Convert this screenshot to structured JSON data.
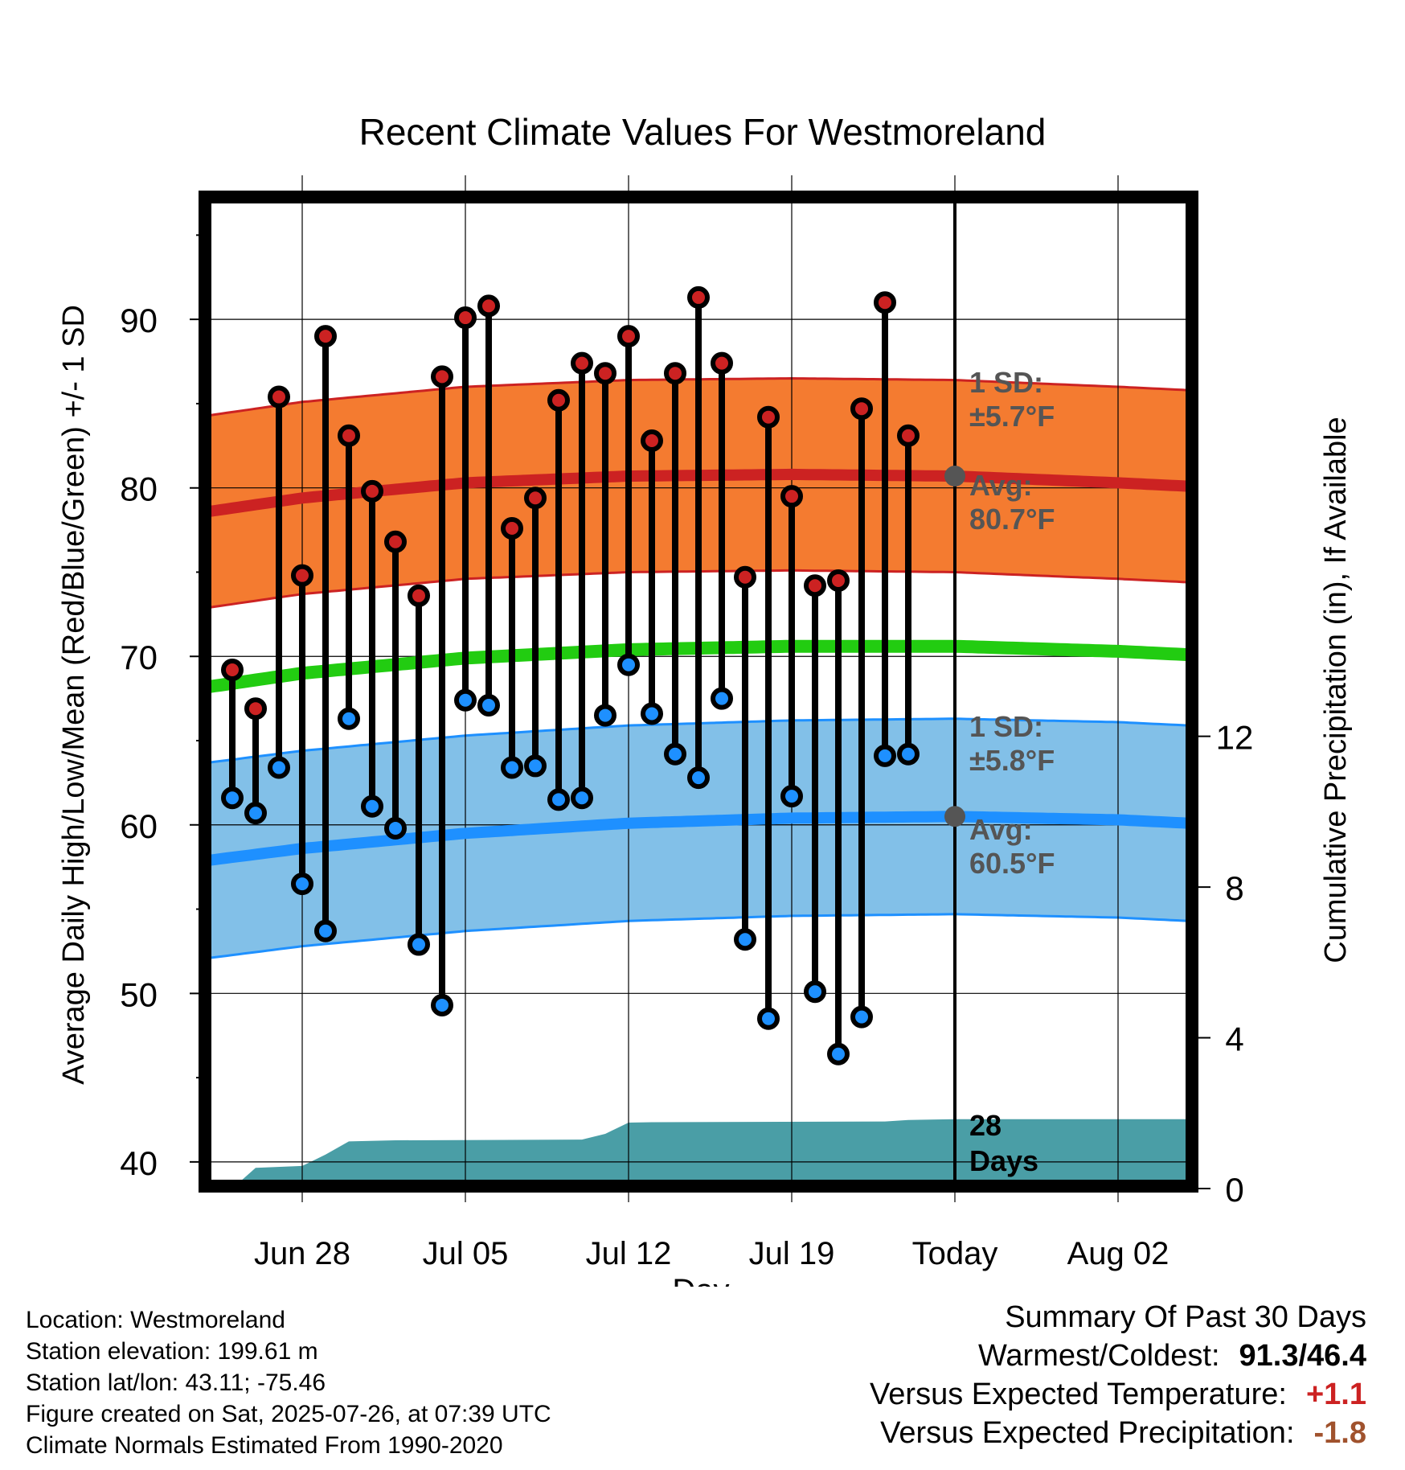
{
  "chart_data": {
    "type": "line",
    "title": "Recent Climate Values For Westmoreland",
    "xlabel": "Day",
    "ylabel": "Average Daily High/Low/Mean (Red/Blue/Green) +/- 1 SD",
    "y2label": "Cumulative Precipitation (in), If Available",
    "ylim": [
      38.8,
      97.5
    ],
    "y2lim": [
      0,
      28
    ],
    "xlim": [
      "2025-06-24",
      "2025-08-05"
    ],
    "grid": true,
    "x_ticks": [
      {
        "date": "2025-06-28",
        "label": "Jun 28"
      },
      {
        "date": "2025-07-05",
        "label": "Jul 05"
      },
      {
        "date": "2025-07-12",
        "label": "Jul 12"
      },
      {
        "date": "2025-07-19",
        "label": "Jul 19"
      },
      {
        "date": "2025-07-26",
        "label": "Today"
      },
      {
        "date": "2025-08-02",
        "label": "Aug 02"
      }
    ],
    "y_ticks": [
      40,
      50,
      60,
      70,
      80,
      90
    ],
    "y2_ticks": [
      0,
      4,
      8,
      12
    ],
    "today": "2025-07-26",
    "daily": [
      {
        "date": "2025-06-25",
        "high": 69.2,
        "low": 61.6
      },
      {
        "date": "2025-06-26",
        "high": 66.9,
        "low": 60.7
      },
      {
        "date": "2025-06-27",
        "high": 85.4,
        "low": 63.4
      },
      {
        "date": "2025-06-28",
        "high": 74.8,
        "low": 56.5
      },
      {
        "date": "2025-06-29",
        "high": 89.0,
        "low": 53.7
      },
      {
        "date": "2025-06-30",
        "high": 83.1,
        "low": 66.3
      },
      {
        "date": "2025-07-01",
        "high": 79.8,
        "low": 61.1
      },
      {
        "date": "2025-07-02",
        "high": 76.8,
        "low": 59.8
      },
      {
        "date": "2025-07-03",
        "high": 73.6,
        "low": 52.9
      },
      {
        "date": "2025-07-04",
        "high": 86.6,
        "low": 49.3
      },
      {
        "date": "2025-07-05",
        "high": 90.1,
        "low": 67.4
      },
      {
        "date": "2025-07-06",
        "high": 90.8,
        "low": 67.1
      },
      {
        "date": "2025-07-07",
        "high": 77.6,
        "low": 63.4
      },
      {
        "date": "2025-07-08",
        "high": 79.4,
        "low": 63.5
      },
      {
        "date": "2025-07-09",
        "high": 85.2,
        "low": 61.5
      },
      {
        "date": "2025-07-10",
        "high": 87.4,
        "low": 61.6
      },
      {
        "date": "2025-07-11",
        "high": 86.8,
        "low": 66.5
      },
      {
        "date": "2025-07-12",
        "high": 89.0,
        "low": 69.5
      },
      {
        "date": "2025-07-13",
        "high": 82.8,
        "low": 66.6
      },
      {
        "date": "2025-07-14",
        "high": 86.8,
        "low": 64.2
      },
      {
        "date": "2025-07-15",
        "high": 91.3,
        "low": 62.8
      },
      {
        "date": "2025-07-16",
        "high": 87.4,
        "low": 67.5
      },
      {
        "date": "2025-07-17",
        "high": 74.7,
        "low": 53.2
      },
      {
        "date": "2025-07-18",
        "high": 84.2,
        "low": 48.5
      },
      {
        "date": "2025-07-19",
        "high": 79.5,
        "low": 61.7
      },
      {
        "date": "2025-07-20",
        "high": 74.2,
        "low": 50.1
      },
      {
        "date": "2025-07-21",
        "high": 74.5,
        "low": 46.4
      },
      {
        "date": "2025-07-22",
        "high": 84.7,
        "low": 48.6
      },
      {
        "date": "2025-07-23",
        "high": 91.0,
        "low": 64.1
      },
      {
        "date": "2025-07-24",
        "high": 83.1,
        "low": 64.2
      }
    ],
    "normals": [
      {
        "date": "2025-06-24",
        "high": 78.6,
        "low": 57.9,
        "mean": 68.2
      },
      {
        "date": "2025-06-28",
        "high": 79.4,
        "low": 58.6,
        "mean": 69.0
      },
      {
        "date": "2025-07-05",
        "high": 80.3,
        "low": 59.5,
        "mean": 69.9
      },
      {
        "date": "2025-07-12",
        "high": 80.7,
        "low": 60.1,
        "mean": 70.4
      },
      {
        "date": "2025-07-19",
        "high": 80.8,
        "low": 60.4,
        "mean": 70.6
      },
      {
        "date": "2025-07-26",
        "high": 80.7,
        "low": 60.5,
        "mean": 70.6
      },
      {
        "date": "2025-08-02",
        "high": 80.3,
        "low": 60.3,
        "mean": 70.3
      },
      {
        "date": "2025-08-05",
        "high": 80.1,
        "low": 60.1,
        "mean": 70.1
      }
    ],
    "high_sd": 5.7,
    "low_sd": 5.8,
    "precipitation": [
      {
        "date": "2025-06-24",
        "value": 0.0
      },
      {
        "date": "2025-06-25",
        "value": 0.0
      },
      {
        "date": "2025-06-26",
        "value": 0.55
      },
      {
        "date": "2025-06-28",
        "value": 0.6
      },
      {
        "date": "2025-06-29",
        "value": 0.9
      },
      {
        "date": "2025-06-30",
        "value": 1.25
      },
      {
        "date": "2025-07-02",
        "value": 1.28
      },
      {
        "date": "2025-07-10",
        "value": 1.3
      },
      {
        "date": "2025-07-11",
        "value": 1.45
      },
      {
        "date": "2025-07-12",
        "value": 1.75
      },
      {
        "date": "2025-07-13",
        "value": 1.76
      },
      {
        "date": "2025-07-23",
        "value": 1.78
      },
      {
        "date": "2025-07-24",
        "value": 1.82
      },
      {
        "date": "2025-07-26",
        "value": 1.84
      },
      {
        "date": "2025-08-05",
        "value": 1.84
      }
    ],
    "annotations": {
      "high_sd_label": "1 SD:",
      "high_sd_value": "±5.7°F",
      "high_avg_label": "Avg:",
      "high_avg_value": "80.7°F",
      "low_sd_label": "1 SD:",
      "low_sd_value": "±5.8°F",
      "low_avg_label": "Avg:",
      "low_avg_value": "60.5°F",
      "days_count": "28",
      "days_label": "Days"
    },
    "colors": {
      "high_band": "#f47b30",
      "high_line": "#cc2222",
      "low_band": "#82c0e8",
      "low_line": "#1e90ff",
      "mean_line": "#22cc11",
      "precip": "#4a9ea6",
      "high_point": "#cc2222",
      "low_point": "#1e90ff",
      "annotation": "#555555"
    }
  },
  "footer": {
    "location": "Location: Westmoreland",
    "elevation": "Station elevation: 199.61 m",
    "latlon": "Station lat/lon: 43.11; -75.46",
    "created": "Figure created on Sat, 2025-07-26, at 07:39 UTC",
    "normals": "Climate Normals Estimated From 1990-2020"
  },
  "summary": {
    "title": "Summary Of Past 30 Days",
    "warm_cold_label": "Warmest/Coldest:",
    "warm_cold_value": "91.3/46.4",
    "temp_label": "Versus Expected Temperature:",
    "temp_value": "+1.1",
    "precip_label": "Versus Expected Precipitation:",
    "precip_value": "-1.8"
  }
}
